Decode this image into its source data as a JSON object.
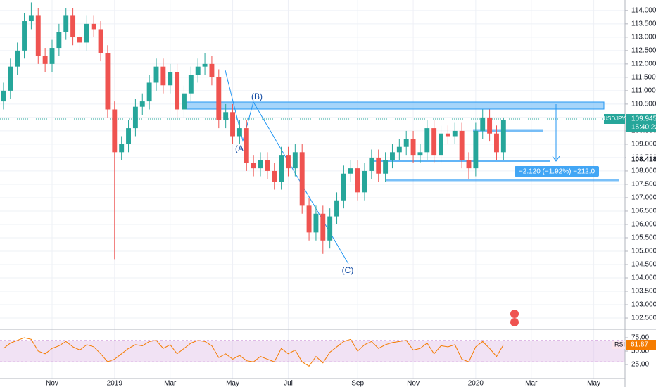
{
  "chart_data": {
    "type": "candlestick",
    "symbol": "USDJPY",
    "last_price": 109.945,
    "countdown": "15:40:23",
    "crosshair_price": 108.418,
    "measure_label": "−2.120 (−1.92%) −212.0",
    "annotations": [
      "(A)",
      "(B)",
      "(C)"
    ],
    "up_color": "#26a69a",
    "down_color": "#ef5350",
    "grid": true,
    "categories": [
      null,
      null,
      null,
      null,
      null,
      null,
      null,
      "Nov",
      null,
      null,
      null,
      null,
      null,
      null,
      null,
      null,
      "2019",
      null,
      null,
      null,
      null,
      null,
      null,
      null,
      "Mar",
      null,
      null,
      null,
      null,
      null,
      null,
      null,
      null,
      "May",
      null,
      null,
      null,
      null,
      null,
      null,
      null,
      "Jul",
      null,
      null,
      null,
      null,
      null,
      null,
      null,
      null,
      null,
      "Sep",
      null,
      null,
      null,
      null,
      null,
      null,
      null,
      "Nov",
      null,
      null,
      null,
      null,
      null,
      null,
      null,
      null,
      "2020",
      null,
      null,
      null,
      null,
      null,
      null,
      null,
      "Mar",
      null,
      null,
      null,
      null,
      null,
      null,
      null,
      null,
      "May",
      null,
      null,
      null,
      null
    ],
    "open": [
      110.6,
      111.0,
      111.9,
      112.5,
      113.6,
      113.8,
      112.3,
      112.0,
      112.6,
      113.2,
      113.8,
      113.0,
      112.8,
      113.5,
      113.3,
      112.4,
      110.3,
      108.7,
      109.0,
      109.6,
      110.4,
      110.6,
      111.3,
      111.9,
      111.2,
      111.7,
      110.3,
      110.9,
      111.6,
      111.9,
      112.0,
      111.5,
      109.9,
      110.2,
      109.3,
      109.6,
      108.3,
      108.1,
      108.4,
      108.0,
      107.6,
      108.6,
      108.1,
      108.7,
      106.7,
      105.7,
      106.4,
      105.4,
      106.3,
      106.9,
      107.9,
      108.1,
      107.2,
      108.0,
      108.5,
      107.9,
      108.4,
      108.7,
      108.9,
      109.2,
      108.6,
      108.7,
      109.6,
      108.6,
      109.4,
      109.3,
      109.5,
      108.4,
      108.1,
      109.5,
      110.0,
      109.4,
      108.7,
      null,
      null,
      null,
      null,
      null,
      null,
      null,
      null,
      null,
      null,
      null,
      null,
      null,
      null,
      null,
      null,
      null
    ],
    "high": [
      111.3,
      112.2,
      112.8,
      113.9,
      114.3,
      114.1,
      112.6,
      112.9,
      113.5,
      114.1,
      114.1,
      113.3,
      113.8,
      113.8,
      113.6,
      112.7,
      110.6,
      109.3,
      109.9,
      110.7,
      110.9,
      111.6,
      112.2,
      112.2,
      112.0,
      112.0,
      111.2,
      111.9,
      112.2,
      112.4,
      112.3,
      111.8,
      110.5,
      110.5,
      109.9,
      109.9,
      108.6,
      108.7,
      108.7,
      108.3,
      108.9,
      108.9,
      109.0,
      109.0,
      107.0,
      106.7,
      106.7,
      106.6,
      107.2,
      108.2,
      108.4,
      108.4,
      108.3,
      108.8,
      108.8,
      108.7,
      109.0,
      109.2,
      109.5,
      109.5,
      109.0,
      109.9,
      109.9,
      109.7,
      109.7,
      109.8,
      109.8,
      108.7,
      109.8,
      110.3,
      110.3,
      109.7,
      110.0,
      null,
      null,
      null,
      null,
      null,
      null,
      null,
      null,
      null,
      null,
      null,
      null,
      null,
      null,
      null,
      null,
      null
    ],
    "low": [
      110.3,
      110.7,
      111.6,
      112.2,
      113.3,
      112.0,
      111.7,
      111.7,
      112.3,
      112.9,
      112.7,
      112.5,
      112.5,
      113.0,
      112.1,
      110.0,
      104.7,
      108.4,
      108.7,
      109.3,
      110.1,
      110.3,
      111.0,
      110.9,
      110.9,
      110.0,
      110.0,
      110.6,
      111.3,
      111.6,
      111.2,
      109.6,
      109.6,
      109.0,
      109.0,
      108.0,
      107.8,
      107.8,
      107.7,
      107.3,
      107.3,
      107.8,
      107.8,
      106.4,
      105.4,
      105.4,
      104.9,
      105.1,
      106.0,
      106.6,
      107.6,
      106.9,
      106.9,
      107.7,
      107.6,
      107.6,
      108.1,
      108.4,
      108.6,
      108.3,
      108.3,
      108.4,
      108.3,
      108.3,
      109.0,
      109.0,
      108.1,
      107.7,
      107.8,
      109.2,
      109.1,
      108.4,
      108.4,
      null,
      null,
      null,
      null,
      null,
      null,
      null,
      null,
      null,
      null,
      null,
      null,
      null,
      null,
      null,
      null,
      null
    ],
    "close": [
      111.0,
      111.9,
      112.5,
      113.6,
      113.8,
      112.3,
      112.0,
      112.6,
      113.2,
      113.8,
      113.0,
      112.8,
      113.5,
      113.3,
      112.4,
      110.3,
      108.7,
      109.0,
      109.6,
      110.4,
      110.6,
      111.3,
      111.9,
      111.2,
      111.7,
      110.3,
      110.9,
      111.6,
      111.9,
      112.0,
      111.5,
      109.9,
      110.2,
      109.3,
      109.6,
      108.3,
      108.1,
      108.4,
      108.0,
      107.6,
      108.6,
      108.1,
      108.7,
      106.7,
      105.7,
      106.4,
      105.4,
      106.3,
      106.9,
      107.9,
      108.1,
      107.2,
      108.0,
      108.5,
      107.9,
      108.4,
      108.7,
      108.9,
      109.2,
      108.6,
      108.7,
      109.6,
      108.6,
      109.4,
      109.3,
      109.5,
      108.4,
      108.1,
      109.5,
      110.0,
      109.4,
      108.7,
      109.9,
      null,
      null,
      null,
      null,
      null,
      null,
      null,
      null,
      null,
      null,
      null,
      null,
      null,
      null,
      null,
      null,
      null
    ],
    "ylim": [
      102.08,
      114.39
    ],
    "yticks": [
      {
        "value": 102.5,
        "label": "102.500"
      },
      {
        "value": 103,
        "label": "103.000"
      },
      {
        "value": 103.5,
        "label": "103.500"
      },
      {
        "value": 104,
        "label": "104.000"
      },
      {
        "value": 104.5,
        "label": "104.500"
      },
      {
        "value": 105,
        "label": "105.000"
      },
      {
        "value": 105.5,
        "label": "105.500"
      },
      {
        "value": 106,
        "label": "106.000"
      },
      {
        "value": 106.5,
        "label": "106.500"
      },
      {
        "value": 107,
        "label": "107.000"
      },
      {
        "value": 107.5,
        "label": "107.500"
      },
      {
        "value": 108,
        "label": "108.000"
      },
      {
        "value": 108.5,
        "label": "108.500"
      },
      {
        "value": 109,
        "label": "109.000"
      },
      {
        "value": 109.5,
        "label": "109.500"
      },
      {
        "value": 110,
        "label": "110.000"
      },
      {
        "value": 110.5,
        "label": "110.500"
      },
      {
        "value": 111,
        "label": "111.000"
      },
      {
        "value": 111.5,
        "label": "111.500"
      },
      {
        "value": 112,
        "label": "112.000"
      },
      {
        "value": 112.5,
        "label": "112.500"
      },
      {
        "value": 113,
        "label": "113.000"
      },
      {
        "value": 113.5,
        "label": "113.500"
      },
      {
        "value": 114,
        "label": "114.000"
      }
    ],
    "rsi": {
      "name": "RSI",
      "color": "#f57c00",
      "band": [
        30,
        70
      ],
      "ylim": [
        -1.3,
        88.2
      ],
      "yticks": [
        {
          "value": 25,
          "label": "25.00"
        },
        {
          "value": 50,
          "label": "50.00"
        },
        {
          "value": 75,
          "label": "75.00"
        }
      ],
      "values": [
        55,
        65,
        70,
        75,
        72,
        50,
        45,
        55,
        60,
        68,
        58,
        52,
        62,
        58,
        45,
        30,
        35,
        45,
        55,
        62,
        60,
        68,
        70,
        55,
        62,
        45,
        55,
        65,
        70,
        68,
        60,
        38,
        45,
        35,
        42,
        32,
        30,
        40,
        35,
        30,
        55,
        45,
        52,
        30,
        22,
        40,
        28,
        48,
        58,
        68,
        72,
        50,
        62,
        68,
        55,
        62,
        66,
        68,
        70,
        52,
        55,
        65,
        45,
        60,
        58,
        62,
        35,
        30,
        58,
        68,
        55,
        40,
        61.87,
        null,
        null,
        null,
        null,
        null,
        null,
        null,
        null,
        null,
        null,
        null,
        null,
        null,
        null,
        null,
        null,
        null
      ]
    }
  }
}
